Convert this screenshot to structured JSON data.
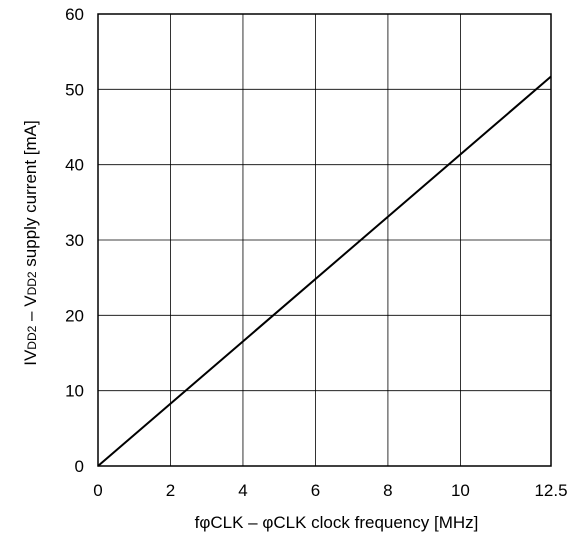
{
  "chart_data": {
    "type": "line",
    "title": "",
    "xlabel": "fφCLK – φCLK clock frequency [MHz]",
    "ylabel_parts": [
      {
        "text": "IV",
        "sub": false
      },
      {
        "text": "DD2",
        "sub": true
      },
      {
        "text": " – V",
        "sub": false
      },
      {
        "text": "DD2",
        "sub": true
      },
      {
        "text": " supply current [mA]",
        "sub": false
      }
    ],
    "xlim": [
      0,
      12.5
    ],
    "ylim": [
      0,
      60
    ],
    "x_ticks": [
      0,
      2,
      4,
      6,
      8,
      10,
      12.5
    ],
    "x_tick_labels": [
      "0",
      "2",
      "4",
      "6",
      "8",
      "10",
      "12.5"
    ],
    "y_ticks": [
      0,
      10,
      20,
      30,
      40,
      50,
      60
    ],
    "y_tick_labels": [
      "0",
      "10",
      "20",
      "30",
      "40",
      "50",
      "60"
    ],
    "grid": true,
    "series": [
      {
        "x": [
          0,
          12.5
        ],
        "y": [
          0,
          51.7
        ],
        "color": "#000000"
      }
    ]
  }
}
